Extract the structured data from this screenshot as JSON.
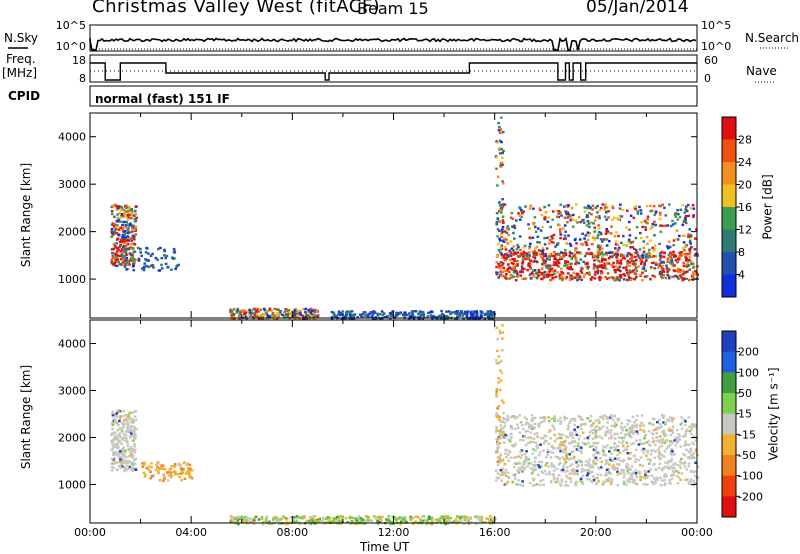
{
  "header": {
    "station": "Christmas Valley West (fitACF)",
    "beam": "Beam 15",
    "date": "05/Jan/2014"
  },
  "top_panels": {
    "nsky_label": "N.Sky",
    "nsearch_label": "N.Search",
    "freq_label_1": "Freq.",
    "freq_label_2": "[MHz]",
    "nave_label": "Nave",
    "cpid_label": "CPID",
    "cpid_value": "normal (fast) 151 IF",
    "left_ticks_noise": [
      "10^5",
      "10^0"
    ],
    "right_ticks_noise": [
      "10^5",
      "10^0"
    ],
    "left_ticks_freq": [
      "18",
      "8"
    ],
    "right_ticks_freq": [
      "60",
      "0"
    ]
  },
  "axis": {
    "xlabel": "Time UT",
    "x_ticks": [
      "00:00",
      "04:00",
      "08:00",
      "12:00",
      "16:00",
      "20:00",
      "00:00"
    ],
    "ylabel": "Slant Range [km]",
    "y_ticks": [
      "1000",
      "2000",
      "3000",
      "4000"
    ]
  },
  "power_scale": {
    "label": "Power [dB]",
    "ticks": [
      "4",
      "8",
      "12",
      "16",
      "20",
      "24",
      "28"
    ],
    "colors": [
      "#1030e0",
      "#2050b0",
      "#2e7a70",
      "#3aa050",
      "#f0c020",
      "#f09020",
      "#f05010",
      "#e01010"
    ]
  },
  "velocity_scale": {
    "label": "Velocity [m s⁻¹]",
    "ticks": [
      "200",
      "100",
      "50",
      "15",
      "-15",
      "-50",
      "-100",
      "-200"
    ],
    "colors": [
      "#2040c0",
      "#2060e0",
      "#40a040",
      "#80d050",
      "#c8c8c0",
      "#f0b030",
      "#f08020",
      "#f04010",
      "#e01010"
    ]
  },
  "chart_data": {
    "type": "heatmap",
    "x_range_hours": [
      0,
      24
    ],
    "y_range_km": [
      180,
      4500
    ],
    "panels": [
      {
        "name": "power",
        "regions": [
          {
            "t0": 0.8,
            "t1": 1.8,
            "r0": 1300,
            "r1": 2600,
            "level": "high"
          },
          {
            "t0": 1.5,
            "t1": 3.5,
            "r0": 1200,
            "r1": 1600,
            "level": "low"
          },
          {
            "t0": 5.5,
            "t1": 9.0,
            "r0": 180,
            "r1": 400,
            "level": "mixed"
          },
          {
            "t0": 9.5,
            "t1": 16.0,
            "r0": 180,
            "r1": 350,
            "level": "low"
          },
          {
            "t0": 16.0,
            "t1": 24.0,
            "r0": 1000,
            "r1": 2600,
            "level": "high"
          }
        ]
      },
      {
        "name": "velocity",
        "regions": [
          {
            "t0": 0.8,
            "t1": 1.8,
            "r0": 1300,
            "r1": 2600,
            "class": "low"
          },
          {
            "t0": 2.0,
            "t1": 4.0,
            "r0": 1100,
            "r1": 1500,
            "class": "neg"
          },
          {
            "t0": 5.5,
            "t1": 16.0,
            "r0": 180,
            "r1": 350,
            "class": "mixed"
          },
          {
            "t0": 16.0,
            "t1": 24.0,
            "r0": 1000,
            "r1": 2500,
            "class": "low"
          }
        ]
      }
    ]
  }
}
